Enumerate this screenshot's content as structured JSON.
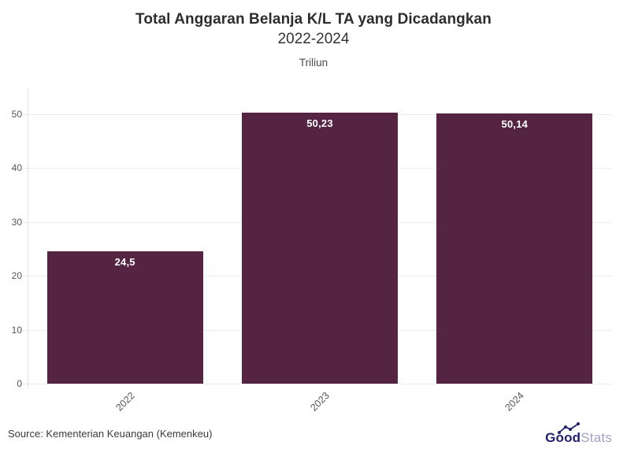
{
  "header": {
    "title_line1": "Total Anggaran Belanja K/L TA yang Dicadangkan",
    "title_line2": "2022-2024",
    "subtitle": "Triliun"
  },
  "chart_data": {
    "type": "bar",
    "title": "Total Anggaran Belanja K/L TA yang Dicadangkan 2022-2024",
    "subtitle": "Triliun",
    "categories": [
      "2022",
      "2023",
      "2024"
    ],
    "values": [
      24.5,
      50.23,
      50.14
    ],
    "value_labels": [
      "24,5",
      "50,23",
      "50,14"
    ],
    "xlabel": "",
    "ylabel": "",
    "ylim": [
      0,
      50
    ],
    "yticks": [
      0,
      10,
      20,
      30,
      40,
      50
    ],
    "ytick_labels": [
      "0",
      "10",
      "20",
      "30",
      "40",
      "50"
    ],
    "grid": true,
    "legend": "none",
    "bar_color": "#552442",
    "value_label_color": "#ffffff",
    "gridline_color": "#ececec",
    "tick_label_color": "#555555"
  },
  "footer": {
    "source": "Source: Kementerian Keuangan (Kemenkeu)",
    "logo_part1": "Good",
    "logo_part2": "Stats",
    "logo_navy": "#23206f",
    "logo_gray": "#a2a2c4"
  }
}
